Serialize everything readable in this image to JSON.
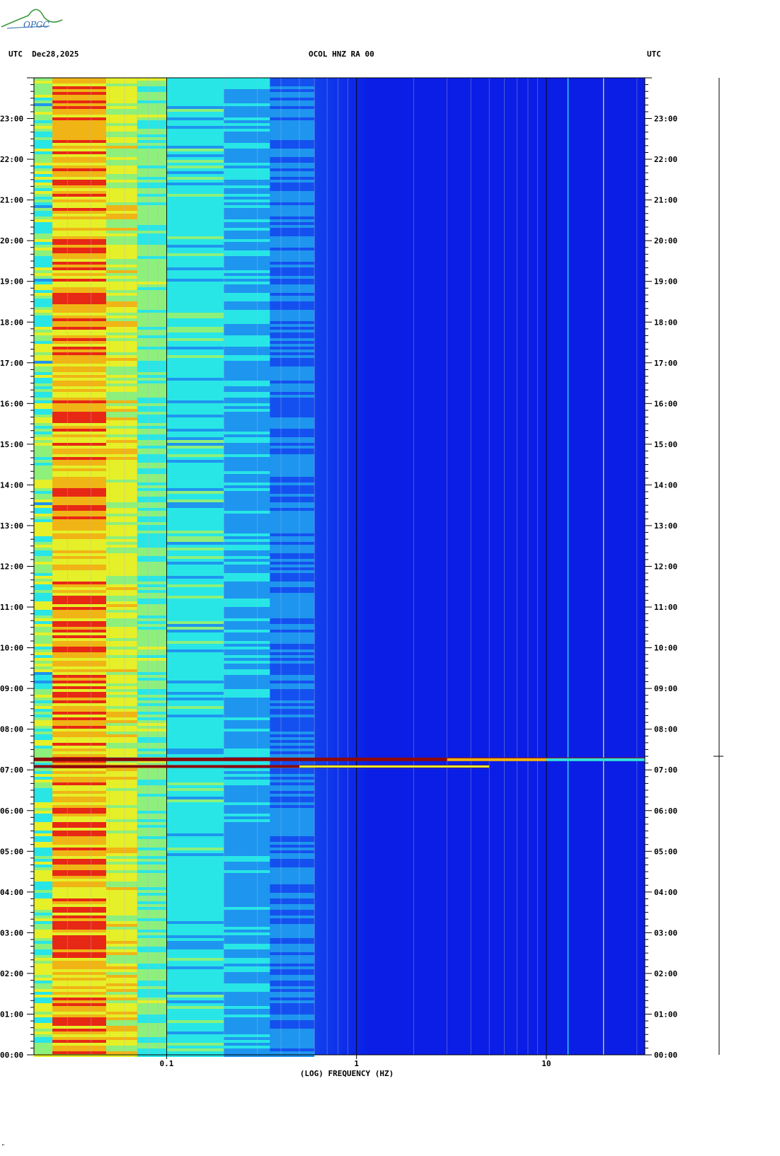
{
  "header": {
    "left_label": "UTC  Dec28,2025",
    "center_label": "OCOL HNZ RA 00",
    "right_label": "UTC"
  },
  "logo": {
    "text": "OPGC"
  },
  "footer_mark": "\"",
  "chart_data": {
    "type": "heatmap",
    "title": "OCOL HNZ RA 00",
    "date": "Dec28,2025",
    "timezone": "UTC",
    "xlabel": "(LOG) FREQUENCY (HZ)",
    "x_scale": "log",
    "xlim_hz": [
      0.02,
      33
    ],
    "x_tick_labels": [
      {
        "value": 0.1,
        "label": "0.1"
      },
      {
        "value": 1,
        "label": "1"
      },
      {
        "value": 10,
        "label": "10"
      }
    ],
    "ylabel": "UTC",
    "ylim_hours": [
      0,
      24
    ],
    "y_tick_labels": [
      "00:00",
      "01:00",
      "02:00",
      "03:00",
      "04:00",
      "05:00",
      "06:00",
      "07:00",
      "08:00",
      "09:00",
      "10:00",
      "11:00",
      "12:00",
      "13:00",
      "14:00",
      "15:00",
      "16:00",
      "17:00",
      "18:00",
      "19:00",
      "20:00",
      "21:00",
      "22:00",
      "23:00"
    ],
    "colormap": [
      "#0a1ee6",
      "#1450f0",
      "#1e96f0",
      "#28e6e6",
      "#8cf07a",
      "#e6f028",
      "#f0b414",
      "#e62814",
      "#8c0a0a"
    ],
    "events": [
      {
        "label": "strong broadband event",
        "time_utc": "07:15",
        "max_freq_hz": 33
      },
      {
        "label": "secondary event",
        "time_utc": "07:05",
        "max_freq_hz": 5
      }
    ],
    "persistent_lines_hz": [
      13,
      20
    ]
  }
}
